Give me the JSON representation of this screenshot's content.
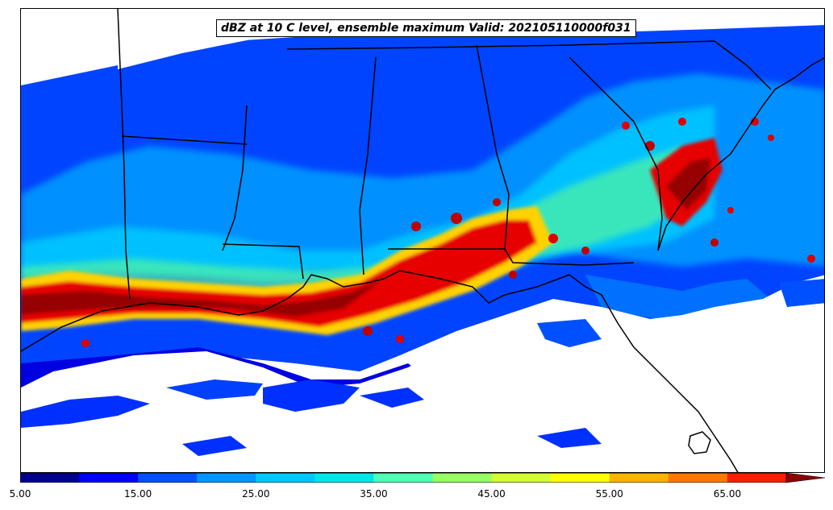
{
  "map": {
    "title": "dBZ at 10 C level, ensemble maximum Valid: 202105110000f031",
    "field": "dBZ"
  },
  "colorbar": {
    "min": 5,
    "max": 70,
    "extend": "max",
    "levels": [
      5,
      10,
      15,
      20,
      25,
      30,
      35,
      40,
      45,
      50,
      55,
      60,
      65,
      70
    ],
    "colors": [
      "#00008c",
      "#0000ff",
      "#0050ff",
      "#0096ff",
      "#00c8ff",
      "#00e6e6",
      "#50ffb4",
      "#96ff64",
      "#d2ff32",
      "#ffff00",
      "#ffb400",
      "#ff7800",
      "#ff1e00",
      "#c80000",
      "#8c0000"
    ],
    "ticks": [
      "5.00",
      "15.00",
      "25.00",
      "35.00",
      "45.00",
      "55.00",
      "65.00"
    ]
  },
  "legend_colors": {
    "border": "#000000",
    "ocean_background": "#ffffff"
  }
}
